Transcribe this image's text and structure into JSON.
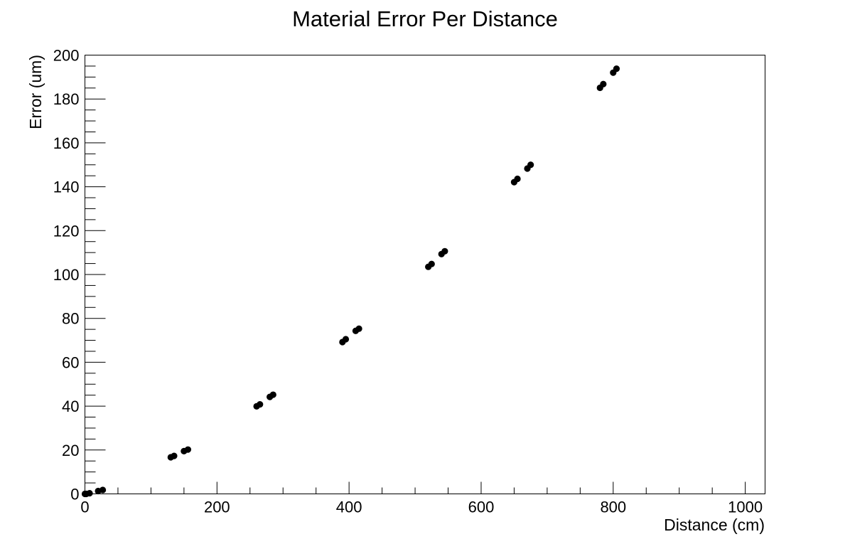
{
  "chart_data": {
    "type": "scatter",
    "title": "Material Error Per Distance",
    "xlabel": "Distance (cm)",
    "ylabel": "Error (um)",
    "xlim": [
      0,
      1030
    ],
    "ylim": [
      0,
      200
    ],
    "x_ticks": [
      0,
      200,
      400,
      600,
      800,
      1000
    ],
    "x_tick_labels": [
      "0",
      "200",
      "400",
      "600",
      "800",
      "1000"
    ],
    "y_ticks": [
      0,
      20,
      40,
      60,
      80,
      100,
      120,
      140,
      160,
      180,
      200
    ],
    "y_tick_labels": [
      "0",
      "20",
      "40",
      "60",
      "80",
      "100",
      "120",
      "140",
      "160",
      "180",
      "200"
    ],
    "x_minor_step": 50,
    "y_minor_step": 5,
    "grid": false,
    "series": [
      {
        "color": "#000000",
        "points": [
          [
            0,
            0
          ],
          [
            2,
            0
          ],
          [
            7,
            0.3
          ],
          [
            20,
            1.3
          ],
          [
            27,
            1.8
          ],
          [
            130,
            16.7
          ],
          [
            135,
            17.3
          ],
          [
            150,
            19.5
          ],
          [
            156,
            20.2
          ],
          [
            260,
            39.9
          ],
          [
            265,
            40.8
          ],
          [
            280,
            44.2
          ],
          [
            285,
            45.2
          ],
          [
            390,
            69.2
          ],
          [
            395,
            70.5
          ],
          [
            410,
            74.3
          ],
          [
            415,
            75.3
          ],
          [
            520,
            103.5
          ],
          [
            525,
            104.8
          ],
          [
            540,
            109.3
          ],
          [
            545,
            110.6
          ],
          [
            650,
            142.1
          ],
          [
            655,
            143.6
          ],
          [
            670,
            148.3
          ],
          [
            675,
            150.0
          ],
          [
            780,
            185.1
          ],
          [
            785,
            186.8
          ],
          [
            800,
            192.0
          ],
          [
            805,
            193.8
          ]
        ]
      }
    ]
  }
}
